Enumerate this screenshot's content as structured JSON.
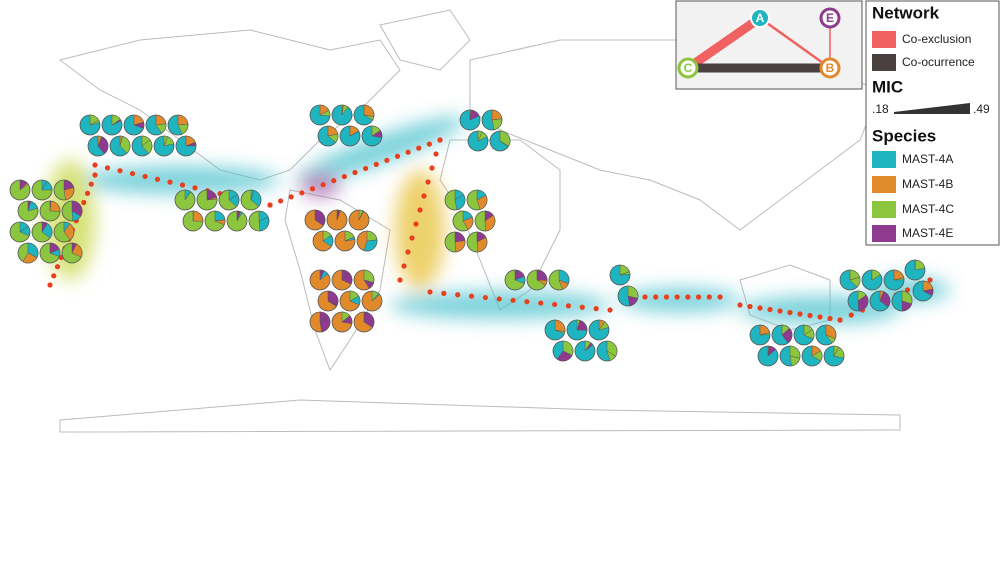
{
  "network": {
    "nodes": [
      {
        "label": "A"
      },
      {
        "label": "E"
      },
      {
        "label": "C"
      },
      {
        "label": "B"
      }
    ]
  },
  "legend": {
    "network_title": "Network",
    "network_items": [
      "Co-exclusion",
      "Co-ocurrence"
    ],
    "mic_title": "MIC",
    "mic_min": ".18",
    "mic_max": ".49",
    "species_title": "Species",
    "species": [
      "MAST-4A",
      "MAST-4B",
      "MAST-4C",
      "MAST-4E"
    ]
  }
}
